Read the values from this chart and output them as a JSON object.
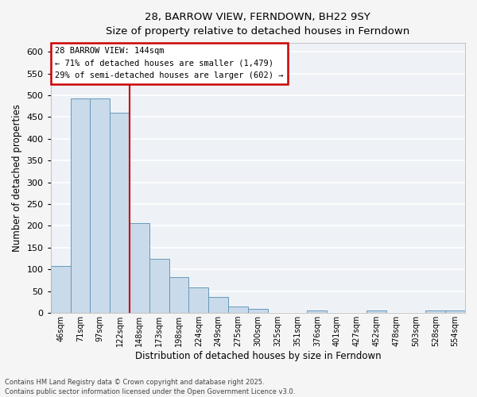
{
  "title": "28, BARROW VIEW, FERNDOWN, BH22 9SY",
  "subtitle": "Size of property relative to detached houses in Ferndown",
  "xlabel": "Distribution of detached houses by size in Ferndown",
  "ylabel": "Number of detached properties",
  "bar_color": "#c9daea",
  "bar_edge_color": "#6699bb",
  "background_color": "#eef2f7",
  "grid_color": "#ffffff",
  "categories": [
    "46sqm",
    "71sqm",
    "97sqm",
    "122sqm",
    "148sqm",
    "173sqm",
    "198sqm",
    "224sqm",
    "249sqm",
    "275sqm",
    "300sqm",
    "325sqm",
    "351sqm",
    "376sqm",
    "401sqm",
    "427sqm",
    "452sqm",
    "478sqm",
    "503sqm",
    "528sqm",
    "554sqm"
  ],
  "values": [
    107,
    492,
    492,
    460,
    207,
    125,
    82,
    58,
    36,
    15,
    10,
    0,
    0,
    5,
    0,
    0,
    5,
    0,
    0,
    5,
    5
  ],
  "vline_x": 3.5,
  "vline_color": "#cc0000",
  "annotation_title": "28 BARROW VIEW: 144sqm",
  "annotation_line1": "← 71% of detached houses are smaller (1,479)",
  "annotation_line2": "29% of semi-detached houses are larger (602) →",
  "annotation_box_color": "#ffffff",
  "annotation_box_edge": "#cc0000",
  "ylim": [
    0,
    620
  ],
  "yticks": [
    0,
    50,
    100,
    150,
    200,
    250,
    300,
    350,
    400,
    450,
    500,
    550,
    600
  ],
  "footer_line1": "Contains HM Land Registry data © Crown copyright and database right 2025.",
  "footer_line2": "Contains public sector information licensed under the Open Government Licence v3.0.",
  "figsize": [
    6.0,
    5.0
  ],
  "dpi": 100
}
